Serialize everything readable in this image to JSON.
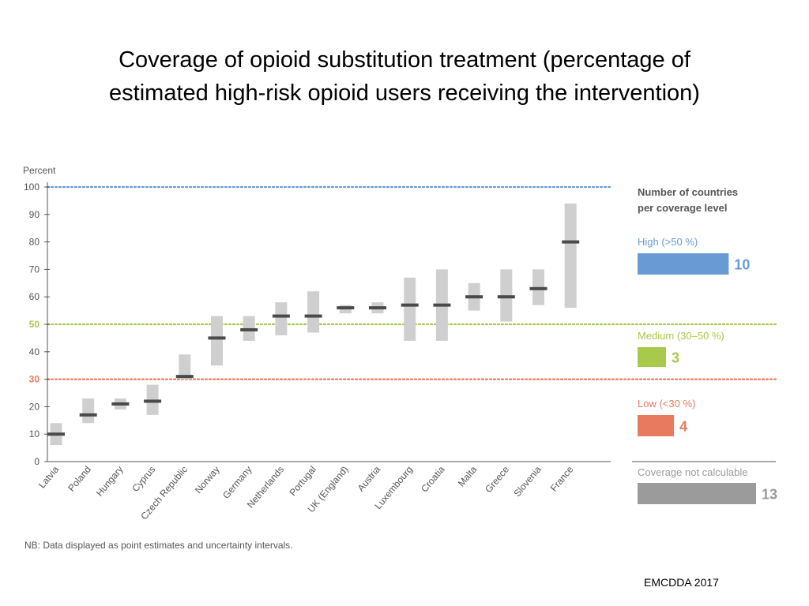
{
  "slide": {
    "title_line1": "Coverage of opioid substitution treatment (percentage of",
    "title_line2": "estimated high-risk opioid users receiving the intervention)",
    "credit": "EMCDDA 2017"
  },
  "chart_data": {
    "type": "range-point",
    "ylabel": "Percent",
    "ylim": [
      0,
      100
    ],
    "yticks": [
      0,
      10,
      20,
      30,
      40,
      50,
      60,
      70,
      80,
      90,
      100
    ],
    "grid": false,
    "categories": [
      "Latvia",
      "Poland",
      "Hungary",
      "Cyprus",
      "Czech Republic",
      "Norway",
      "Germany",
      "Netherlands",
      "Portugal",
      "UK (England)",
      "Austria",
      "Luxembourg",
      "Croatia",
      "Malta",
      "Greece",
      "Slovenia",
      "France"
    ],
    "series": [
      {
        "name": "Point estimate",
        "values": [
          10,
          17,
          21,
          22,
          31,
          45,
          48,
          53,
          53,
          56,
          56,
          57,
          57,
          60,
          60,
          63,
          80
        ]
      },
      {
        "name": "Uncertainty low",
        "values": [
          6,
          14,
          19,
          17,
          30,
          35,
          44,
          46,
          47,
          54,
          54,
          44,
          44,
          55,
          51,
          57,
          56
        ]
      },
      {
        "name": "Uncertainty high",
        "values": [
          14,
          23,
          23,
          28,
          39,
          53,
          53,
          58,
          62,
          57,
          58,
          67,
          70,
          65,
          70,
          70,
          94
        ]
      }
    ],
    "reference_lines": [
      {
        "value": 100,
        "label": "100",
        "color": "#6a9ad4"
      },
      {
        "value": 50,
        "label": "50",
        "color": "#a8c94a"
      },
      {
        "value": 30,
        "label": "30",
        "color": "#e87a5f"
      }
    ],
    "side_panel": {
      "title_line1": "Number of countries",
      "title_line2": "per coverage level",
      "levels": [
        {
          "label": "High (>50 %)",
          "count": 10,
          "color": "#6a9ad4"
        },
        {
          "label": "Medium (30–50 %)",
          "count": 3,
          "color": "#a8c94a"
        },
        {
          "label": "Low (<30 %)",
          "count": 4,
          "color": "#e87a5f"
        },
        {
          "label": "Coverage not calculable",
          "count": 13,
          "color": "#9b9b9b"
        }
      ]
    },
    "note": "NB: Data displayed as point estimates and uncertainty intervals."
  }
}
